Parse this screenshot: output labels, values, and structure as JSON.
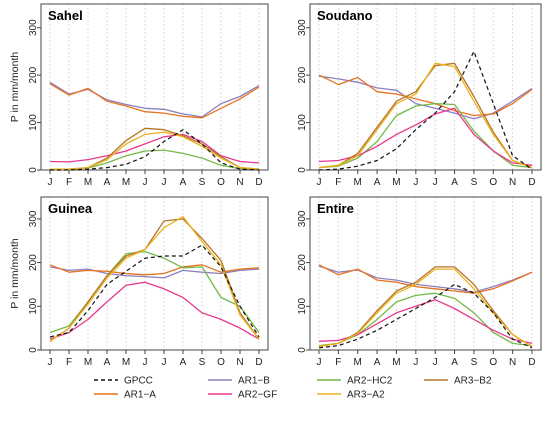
{
  "colors": {
    "GPCC": "#111111",
    "AR1-B": "#8e7fbf",
    "AR2-HC2": "#74b947",
    "AR3-B2": "#b5752b",
    "AR1-A": "#e8731e",
    "AR2-GF": "#e8388d",
    "AR3-A2": "#eab21b"
  },
  "legend": [
    {
      "key": "GPCC",
      "label": "GPCC",
      "dashed": true
    },
    {
      "key": "AR1-B",
      "label": "AR1−B"
    },
    {
      "key": "AR2-HC2",
      "label": "AR2−HC2"
    },
    {
      "key": "AR3-B2",
      "label": "AR3−B2"
    },
    {
      "key": "AR1-A",
      "label": "AR1−A"
    },
    {
      "key": "AR2-GF",
      "label": "AR2−GF"
    },
    {
      "key": "AR3-A2",
      "label": "AR3−A2"
    }
  ],
  "chart_data": [
    {
      "type": "line",
      "title": "Sahel",
      "ylabel": "P in mm/month",
      "ylim": [
        0,
        350
      ],
      "yticks": [
        0,
        100,
        200,
        300
      ],
      "categories": [
        "J",
        "F",
        "M",
        "A",
        "M",
        "J",
        "J",
        "A",
        "S",
        "O",
        "N",
        "D"
      ],
      "series": [
        {
          "key": "GPCC",
          "values": [
            0,
            0,
            2,
            5,
            12,
            28,
            60,
            85,
            55,
            15,
            2,
            0
          ]
        },
        {
          "key": "AR1-B",
          "values": [
            185,
            160,
            170,
            148,
            138,
            130,
            128,
            118,
            112,
            140,
            155,
            178
          ]
        },
        {
          "key": "AR1-A",
          "values": [
            182,
            158,
            172,
            145,
            135,
            123,
            120,
            113,
            110,
            130,
            150,
            175
          ]
        },
        {
          "key": "AR2-HC2",
          "values": [
            2,
            2,
            4,
            15,
            30,
            40,
            42,
            35,
            25,
            10,
            3,
            2
          ]
        },
        {
          "key": "AR2-GF",
          "values": [
            18,
            17,
            22,
            30,
            40,
            55,
            70,
            75,
            60,
            30,
            18,
            15
          ]
        },
        {
          "key": "AR3-B2",
          "values": [
            2,
            2,
            5,
            25,
            62,
            88,
            85,
            72,
            55,
            28,
            5,
            2
          ]
        },
        {
          "key": "AR3-A2",
          "values": [
            2,
            2,
            5,
            22,
            55,
            75,
            80,
            70,
            50,
            25,
            5,
            2
          ]
        }
      ]
    },
    {
      "type": "line",
      "title": "Soudano",
      "ylabel": "",
      "ylim": [
        0,
        350
      ],
      "yticks": [
        0,
        100,
        200,
        300
      ],
      "categories": [
        "J",
        "F",
        "M",
        "A",
        "M",
        "J",
        "J",
        "A",
        "S",
        "O",
        "N",
        "D"
      ],
      "series": [
        {
          "key": "GPCC",
          "values": [
            0,
            2,
            8,
            20,
            45,
            85,
            120,
            165,
            250,
            140,
            30,
            2
          ]
        },
        {
          "key": "AR1-B",
          "values": [
            198,
            192,
            185,
            173,
            168,
            140,
            130,
            120,
            108,
            120,
            145,
            172
          ]
        },
        {
          "key": "AR1-A",
          "values": [
            200,
            180,
            195,
            165,
            160,
            150,
            140,
            125,
            115,
            118,
            140,
            170
          ]
        },
        {
          "key": "AR2-HC2",
          "values": [
            5,
            8,
            25,
            60,
            115,
            135,
            140,
            138,
            82,
            40,
            10,
            5
          ]
        },
        {
          "key": "AR2-GF",
          "values": [
            18,
            20,
            30,
            50,
            75,
            95,
            118,
            130,
            75,
            40,
            15,
            10
          ]
        },
        {
          "key": "AR3-B2",
          "values": [
            5,
            10,
            35,
            90,
            145,
            165,
            220,
            225,
            155,
            80,
            20,
            5
          ]
        },
        {
          "key": "AR3-A2",
          "values": [
            5,
            10,
            30,
            85,
            140,
            160,
            225,
            218,
            145,
            75,
            20,
            5
          ]
        }
      ]
    },
    {
      "type": "line",
      "title": "Guinea",
      "ylabel": "P in mm/month",
      "ylim": [
        0,
        350
      ],
      "yticks": [
        0,
        100,
        200,
        300
      ],
      "categories": [
        "J",
        "F",
        "M",
        "A",
        "M",
        "J",
        "J",
        "A",
        "S",
        "O",
        "N",
        "D"
      ],
      "series": [
        {
          "key": "GPCC",
          "values": [
            30,
            40,
            90,
            150,
            180,
            210,
            215,
            215,
            240,
            190,
            100,
            30
          ]
        },
        {
          "key": "AR1-B",
          "values": [
            190,
            182,
            185,
            175,
            170,
            168,
            165,
            182,
            178,
            175,
            182,
            185
          ]
        },
        {
          "key": "AR1-A",
          "values": [
            195,
            178,
            182,
            180,
            175,
            172,
            175,
            190,
            195,
            178,
            185,
            188
          ]
        },
        {
          "key": "AR2-HC2",
          "values": [
            40,
            55,
            110,
            170,
            220,
            225,
            210,
            188,
            190,
            120,
            100,
            40
          ]
        },
        {
          "key": "AR2-GF",
          "values": [
            25,
            40,
            70,
            110,
            148,
            155,
            140,
            120,
            85,
            70,
            50,
            25
          ]
        },
        {
          "key": "AR3-B2",
          "values": [
            20,
            50,
            110,
            170,
            215,
            230,
            295,
            300,
            255,
            205,
            85,
            25
          ]
        },
        {
          "key": "AR3-A2",
          "values": [
            20,
            50,
            105,
            165,
            210,
            230,
            280,
            305,
            248,
            195,
            80,
            25
          ]
        }
      ]
    },
    {
      "type": "line",
      "title": "Entire",
      "ylabel": "",
      "ylim": [
        0,
        350
      ],
      "yticks": [
        0,
        100,
        200,
        300
      ],
      "categories": [
        "J",
        "F",
        "M",
        "A",
        "M",
        "J",
        "J",
        "A",
        "S",
        "O",
        "N",
        "D"
      ],
      "series": [
        {
          "key": "GPCC",
          "values": [
            5,
            10,
            25,
            45,
            70,
            95,
            120,
            150,
            130,
            85,
            25,
            5
          ]
        },
        {
          "key": "AR1-B",
          "values": [
            192,
            178,
            183,
            165,
            160,
            150,
            145,
            140,
            132,
            145,
            160,
            178
          ]
        },
        {
          "key": "AR1-A",
          "values": [
            195,
            172,
            185,
            160,
            155,
            145,
            140,
            135,
            130,
            140,
            158,
            178
          ]
        },
        {
          "key": "AR2-HC2",
          "values": [
            10,
            15,
            35,
            70,
            110,
            125,
            130,
            118,
            85,
            40,
            15,
            10
          ]
        },
        {
          "key": "AR2-GF",
          "values": [
            20,
            22,
            35,
            60,
            85,
            100,
            115,
            95,
            70,
            45,
            25,
            15
          ]
        },
        {
          "key": "AR3-B2",
          "values": [
            8,
            15,
            40,
            90,
            135,
            155,
            190,
            190,
            150,
            90,
            35,
            8
          ]
        },
        {
          "key": "AR3-A2",
          "values": [
            8,
            15,
            38,
            85,
            130,
            150,
            185,
            185,
            140,
            85,
            35,
            8
          ]
        }
      ]
    }
  ]
}
